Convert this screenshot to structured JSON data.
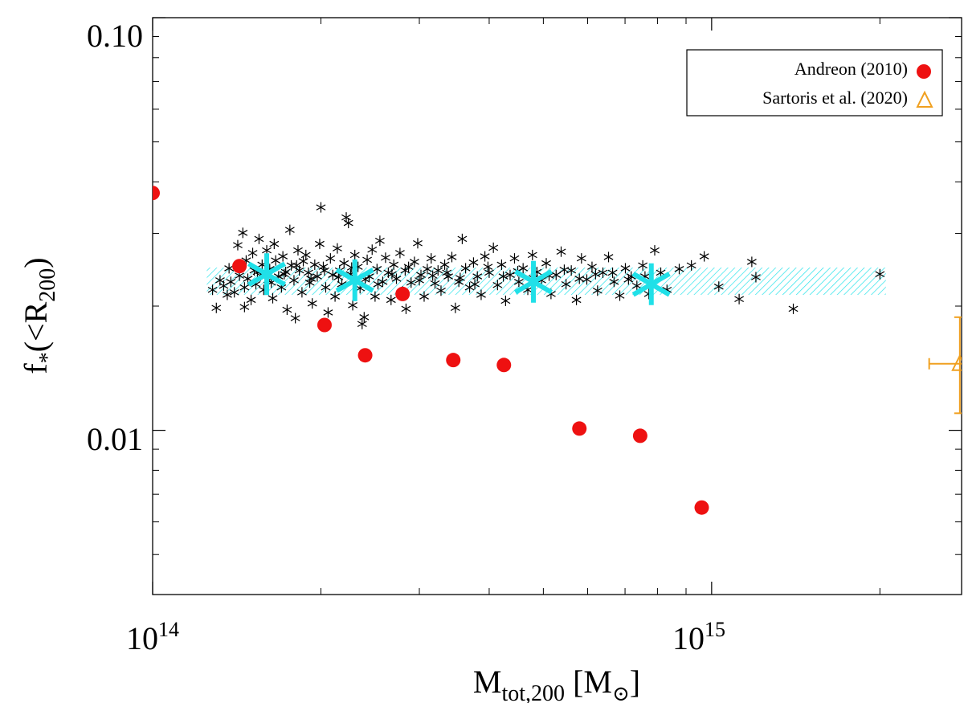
{
  "chart_data": {
    "type": "scatter",
    "xscale": "log",
    "yscale": "log",
    "xlim": [
      100000000000000.0,
      2800000000000000.0
    ],
    "ylim": [
      0.004,
      0.1
    ],
    "xlabel": {
      "base": "M",
      "sub": "tot,200",
      "rest": " [M",
      "sym": "⊙",
      "close": "]"
    },
    "ylabel": {
      "base": "f",
      "sub1": "*",
      "mid": "(<R",
      "sub2": "200",
      "close": ")"
    },
    "yticks_major": [
      {
        "value": 0.01,
        "label": "0.01"
      },
      {
        "value": 0.1,
        "label": "0.10"
      }
    ],
    "yticks_minor": [
      0.005,
      0.006,
      0.007,
      0.008,
      0.009,
      0.02,
      0.03,
      0.04,
      0.05,
      0.06,
      0.07,
      0.08,
      0.09
    ],
    "xticks_major": [
      {
        "value": 100000000000000.0,
        "base": "10",
        "exp": "14"
      },
      {
        "value": 1000000000000000.0,
        "base": "10",
        "exp": "15"
      }
    ],
    "xticks_minor": [
      200000000000000.0,
      300000000000000.0,
      400000000000000.0,
      500000000000000.0,
      600000000000000.0,
      700000000000000.0,
      800000000000000.0,
      900000000000000.0,
      2000000000000000.0
    ],
    "band": {
      "xmin": 125000000000000.0,
      "xmax": 2050000000000000.0,
      "ymin": 0.0213,
      "ymax": 0.0248,
      "color": "#29e3ea"
    },
    "binned_means": {
      "color": "#20e0e8",
      "points": [
        {
          "x": 160000000000000.0,
          "y": 0.0239
        },
        {
          "x": 230000000000000.0,
          "y": 0.0231
        },
        {
          "x": 480000000000000.0,
          "y": 0.0229
        },
        {
          "x": 780000000000000.0,
          "y": 0.0226
        }
      ]
    },
    "simulated_clusters": {
      "color": "#000000",
      "points": [
        [
          128000000000000.0,
          0.0219
        ],
        [
          130000000000000.0,
          0.0198
        ],
        [
          132000000000000.0,
          0.0231
        ],
        [
          134000000000000.0,
          0.0224
        ],
        [
          136000000000000.0,
          0.0213
        ],
        [
          137000000000000.0,
          0.0247
        ],
        [
          138000000000000.0,
          0.0229
        ],
        [
          140000000000000.0,
          0.0216
        ],
        [
          142000000000000.0,
          0.0281
        ],
        [
          143000000000000.0,
          0.0237
        ],
        [
          145000000000000.0,
          0.0301
        ],
        [
          146000000000000.0,
          0.0222
        ],
        [
          147000000000000.0,
          0.0258
        ],
        [
          148000000000000.0,
          0.0233
        ],
        [
          150000000000000.0,
          0.0207
        ],
        [
          151000000000000.0,
          0.0269
        ],
        [
          152000000000000.0,
          0.0244
        ],
        [
          153000000000000.0,
          0.0226
        ],
        [
          155000000000000.0,
          0.0291
        ],
        [
          156000000000000.0,
          0.0237
        ],
        [
          157000000000000.0,
          0.0252
        ],
        [
          158000000000000.0,
          0.0219
        ],
        [
          160000000000000.0,
          0.0273
        ],
        [
          161000000000000.0,
          0.0231
        ],
        [
          162000000000000.0,
          0.0246
        ],
        [
          164000000000000.0,
          0.0209
        ],
        [
          165000000000000.0,
          0.0283
        ],
        [
          166000000000000.0,
          0.0258
        ],
        [
          168000000000000.0,
          0.0236
        ],
        [
          170000000000000.0,
          0.0222
        ],
        [
          171000000000000.0,
          0.0264
        ],
        [
          173000000000000.0,
          0.0242
        ],
        [
          174000000000000.0,
          0.0196
        ],
        [
          176000000000000.0,
          0.0306
        ],
        [
          177000000000000.0,
          0.0251
        ],
        [
          179000000000000.0,
          0.0231
        ],
        [
          180000000000000.0,
          0.0187
        ],
        [
          182000000000000.0,
          0.0273
        ],
        [
          183000000000000.0,
          0.0244
        ],
        [
          185000000000000.0,
          0.0216
        ],
        [
          186000000000000.0,
          0.0257
        ],
        [
          188000000000000.0,
          0.0266
        ],
        [
          190000000000000.0,
          0.0241
        ],
        [
          191000000000000.0,
          0.0228
        ],
        [
          193000000000000.0,
          0.0203
        ],
        [
          195000000000000.0,
          0.0252
        ],
        [
          197000000000000.0,
          0.0236
        ],
        [
          199000000000000.0,
          0.0283
        ],
        [
          200000000000000.0,
          0.0347
        ],
        [
          202000000000000.0,
          0.0249
        ],
        [
          204000000000000.0,
          0.0222
        ],
        [
          206000000000000.0,
          0.0193
        ],
        [
          208000000000000.0,
          0.0261
        ],
        [
          210000000000000.0,
          0.0238
        ],
        [
          212000000000000.0,
          0.0211
        ],
        [
          214000000000000.0,
          0.0276
        ],
        [
          216000000000000.0,
          0.0244
        ],
        [
          218000000000000.0,
          0.0226
        ],
        [
          220000000000000.0,
          0.0254
        ],
        [
          222000000000000.0,
          0.0328
        ],
        [
          224000000000000.0,
          0.0318
        ],
        [
          226000000000000.0,
          0.0239
        ],
        [
          228000000000000.0,
          0.0201
        ],
        [
          230000000000000.0,
          0.0266
        ],
        [
          233000000000000.0,
          0.0249
        ],
        [
          235000000000000.0,
          0.0221
        ],
        [
          237000000000000.0,
          0.0181
        ],
        [
          239000000000000.0,
          0.0188
        ],
        [
          242000000000000.0,
          0.0259
        ],
        [
          244000000000000.0,
          0.0236
        ],
        [
          247000000000000.0,
          0.0274
        ],
        [
          250000000000000.0,
          0.0211
        ],
        [
          252000000000000.0,
          0.0246
        ],
        [
          255000000000000.0,
          0.0288
        ],
        [
          258000000000000.0,
          0.0229
        ],
        [
          261000000000000.0,
          0.0262
        ],
        [
          264000000000000.0,
          0.0241
        ],
        [
          267000000000000.0,
          0.0207
        ],
        [
          270000000000000.0,
          0.0252
        ],
        [
          273000000000000.0,
          0.0233
        ],
        [
          277000000000000.0,
          0.0269
        ],
        [
          280000000000000.0,
          0.0217
        ],
        [
          284000000000000.0,
          0.0197
        ],
        [
          287000000000000.0,
          0.0249
        ],
        [
          290000000000000.0,
          0.0228
        ],
        [
          294000000000000.0,
          0.0256
        ],
        [
          298000000000000.0,
          0.0284
        ],
        [
          302000000000000.0,
          0.0238
        ],
        [
          306000000000000.0,
          0.0211
        ],
        [
          310000000000000.0,
          0.0246
        ],
        [
          315000000000000.0,
          0.0261
        ],
        [
          320000000000000.0,
          0.0227
        ],
        [
          324000000000000.0,
          0.0244
        ],
        [
          328000000000000.0,
          0.0218
        ],
        [
          333000000000000.0,
          0.0252
        ],
        [
          338000000000000.0,
          0.0236
        ],
        [
          343000000000000.0,
          0.0263
        ],
        [
          348000000000000.0,
          0.0198
        ],
        [
          353000000000000.0,
          0.0229
        ],
        [
          358000000000000.0,
          0.0291
        ],
        [
          363000000000000.0,
          0.0247
        ],
        [
          369000000000000.0,
          0.0222
        ],
        [
          375000000000000.0,
          0.0255
        ],
        [
          381000000000000.0,
          0.0236
        ],
        [
          387000000000000.0,
          0.0213
        ],
        [
          393000000000000.0,
          0.0264
        ],
        [
          400000000000000.0,
          0.0241
        ],
        [
          407000000000000.0,
          0.0277
        ],
        [
          414000000000000.0,
          0.0225
        ],
        [
          421000000000000.0,
          0.0252
        ],
        [
          428000000000000.0,
          0.0206
        ],
        [
          436000000000000.0,
          0.0238
        ],
        [
          444000000000000.0,
          0.0261
        ],
        [
          452000000000000.0,
          0.0229
        ],
        [
          460000000000000.0,
          0.0247
        ],
        [
          469000000000000.0,
          0.0219
        ],
        [
          478000000000000.0,
          0.0266
        ],
        [
          487000000000000.0,
          0.0242
        ],
        [
          496000000000000.0,
          0.0231
        ],
        [
          506000000000000.0,
          0.0254
        ],
        [
          516000000000000.0,
          0.0214
        ],
        [
          527000000000000.0,
          0.0238
        ],
        [
          538000000000000.0,
          0.0271
        ],
        [
          549000000000000.0,
          0.0226
        ],
        [
          561000000000000.0,
          0.0244
        ],
        [
          573000000000000.0,
          0.0207
        ],
        [
          585000000000000.0,
          0.0261
        ],
        [
          598000000000000.0,
          0.0232
        ],
        [
          611000000000000.0,
          0.0249
        ],
        [
          625000000000000.0,
          0.0218
        ],
        [
          639000000000000.0,
          0.0241
        ],
        [
          654000000000000.0,
          0.0263
        ],
        [
          669000000000000.0,
          0.0229
        ],
        [
          685000000000000.0,
          0.0212
        ],
        [
          701000000000000.0,
          0.0247
        ],
        [
          718000000000000.0,
          0.0236
        ],
        [
          735000000000000.0,
          0.0224
        ],
        [
          753000000000000.0,
          0.0251
        ],
        [
          772000000000000.0,
          0.0214
        ],
        [
          791000000000000.0,
          0.0273
        ],
        [
          811000000000000.0,
          0.0241
        ],
        [
          832000000000000.0,
          0.0219
        ],
        [
          875000000000000.0,
          0.0246
        ],
        [
          920000000000000.0,
          0.0251
        ],
        [
          970000000000000.0,
          0.0264
        ],
        [
          1030000000000000.0,
          0.0223
        ],
        [
          1120000000000000.0,
          0.0208
        ],
        [
          1180000000000000.0,
          0.0256
        ],
        [
          1200000000000000.0,
          0.0235
        ],
        [
          1400000000000000.0,
          0.0197
        ],
        [
          2000000000000000.0,
          0.0239
        ],
        [
          146000000000000.0,
          0.0199
        ],
        [
          154000000000000.0,
          0.0242
        ],
        [
          163000000000000.0,
          0.0228
        ],
        [
          172000000000000.0,
          0.0239
        ],
        [
          181000000000000.0,
          0.0251
        ],
        [
          192000000000000.0,
          0.0233
        ],
        [
          203000000000000.0,
          0.0244
        ],
        [
          215000000000000.0,
          0.0235
        ],
        [
          227000000000000.0,
          0.0248
        ],
        [
          240000000000000.0,
          0.0232
        ],
        [
          253000000000000.0,
          0.0226
        ],
        [
          268000000000000.0,
          0.0239
        ],
        [
          283000000000000.0,
          0.0244
        ],
        [
          300000000000000.0,
          0.0231
        ],
        [
          317000000000000.0,
          0.0237
        ],
        [
          336000000000000.0,
          0.0241
        ],
        [
          355000000000000.0,
          0.0234
        ],
        [
          377000000000000.0,
          0.0226
        ],
        [
          398000000000000.0,
          0.0249
        ],
        [
          424000000000000.0,
          0.0236
        ],
        [
          450000000000000.0,
          0.0243
        ],
        [
          480000000000000.0,
          0.0234
        ],
        [
          512000000000000.0,
          0.0237
        ],
        [
          545000000000000.0,
          0.0245
        ],
        [
          580000000000000.0,
          0.0233
        ],
        [
          620000000000000.0,
          0.0239
        ],
        [
          665000000000000.0,
          0.0241
        ],
        [
          710000000000000.0,
          0.0232
        ],
        [
          760000000000000.0,
          0.0236
        ]
      ]
    },
    "andreon": {
      "name": "Andreon (2010)",
      "color": "#ee1111",
      "points": [
        [
          100000000000000.0,
          0.0376
        ],
        [
          143000000000000.0,
          0.025
        ],
        [
          203000000000000.0,
          0.018
        ],
        [
          240000000000000.0,
          0.0152
        ],
        [
          280000000000000.0,
          0.0214
        ],
        [
          345000000000000.0,
          0.0148
        ],
        [
          425000000000000.0,
          0.0144
        ],
        [
          580000000000000.0,
          0.0101
        ],
        [
          745000000000000.0,
          0.0097
        ],
        [
          960000000000000.0,
          0.0065
        ]
      ]
    },
    "sartoris": {
      "name": "Sartoris et al. (2020)",
      "color": "#f0a020",
      "point": {
        "x": 2780000000000000.0,
        "y": 0.0145,
        "xerr_lo": 2450000000000000.0,
        "xerr_hi": 2900000000000000.0,
        "yerr_lo": 0.011,
        "yerr_hi": 0.0188
      }
    },
    "legend": {
      "position": "top-right",
      "entries": [
        "Andreon (2010)",
        "Sartoris et al. (2020)"
      ]
    }
  }
}
